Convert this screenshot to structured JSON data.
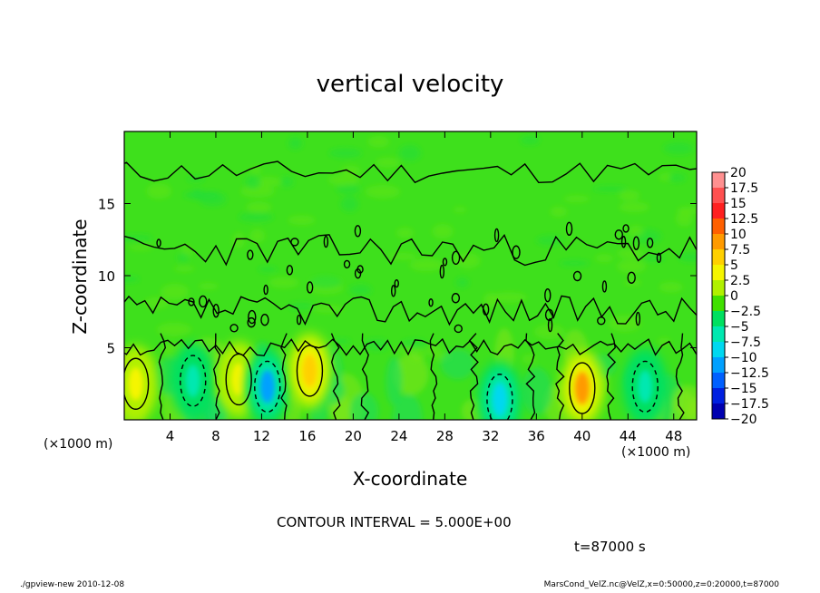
{
  "chart_data": {
    "type": "heatmap",
    "title": "vertical velocity",
    "xlabel": "X-coordinate",
    "ylabel": "Z-coordinate",
    "x_unit_label": "(×1000 m)",
    "xlim": [
      0,
      50
    ],
    "ylim": [
      0,
      20
    ],
    "x_ticks": [
      "4",
      "8",
      "12",
      "16",
      "20",
      "24",
      "28",
      "32",
      "36",
      "40",
      "44",
      "48"
    ],
    "x_tick_values": [
      4,
      8,
      12,
      16,
      20,
      24,
      28,
      32,
      36,
      40,
      44,
      48
    ],
    "y_ticks": [
      "5",
      "10",
      "15"
    ],
    "y_tick_values": [
      5,
      10,
      15
    ],
    "colorbar": {
      "labels": [
        "20",
        "17.5",
        "15",
        "12.5",
        "10",
        "7.5",
        "5",
        "2.5",
        "0",
        "−2.5",
        "−5",
        "−7.5",
        "−10",
        "−12.5",
        "−15",
        "−17.5",
        "−20"
      ],
      "colors": [
        "#ff9090",
        "#ff5050",
        "#ff2020",
        "#ff6000",
        "#ff9a00",
        "#ffd000",
        "#f5f500",
        "#b0f000",
        "#40e000",
        "#00e060",
        "#00e8b0",
        "#00d8f0",
        "#00a0ff",
        "#0060ff",
        "#0020e0",
        "#0000b0",
        "#5010b0"
      ]
    },
    "features": [
      {
        "x": 6,
        "z": 2.7,
        "value": -6,
        "kind": "downdraft"
      },
      {
        "x": 10,
        "z": 2.8,
        "value": 6,
        "kind": "updraft"
      },
      {
        "x": 12.5,
        "z": 2.3,
        "value": -9,
        "kind": "downdraft"
      },
      {
        "x": 16.2,
        "z": 3.4,
        "value": 8,
        "kind": "updraft"
      },
      {
        "x": 32.8,
        "z": 1.4,
        "value": -8,
        "kind": "downdraft"
      },
      {
        "x": 40,
        "z": 2.2,
        "value": 9,
        "kind": "updraft"
      },
      {
        "x": 45.5,
        "z": 2.3,
        "value": -6,
        "kind": "downdraft"
      },
      {
        "x": 1,
        "z": 2.5,
        "value": 4,
        "kind": "updraft"
      }
    ],
    "contour_interval_text": "CONTOUR INTERVAL = 5.000E+00",
    "time_text": "t=87000 s"
  },
  "footer": {
    "left": "./gpview-new  2010-12-08",
    "right": "MarsCond_VelZ.nc@VelZ,x=0:50000,z=0:20000,t=87000"
  }
}
